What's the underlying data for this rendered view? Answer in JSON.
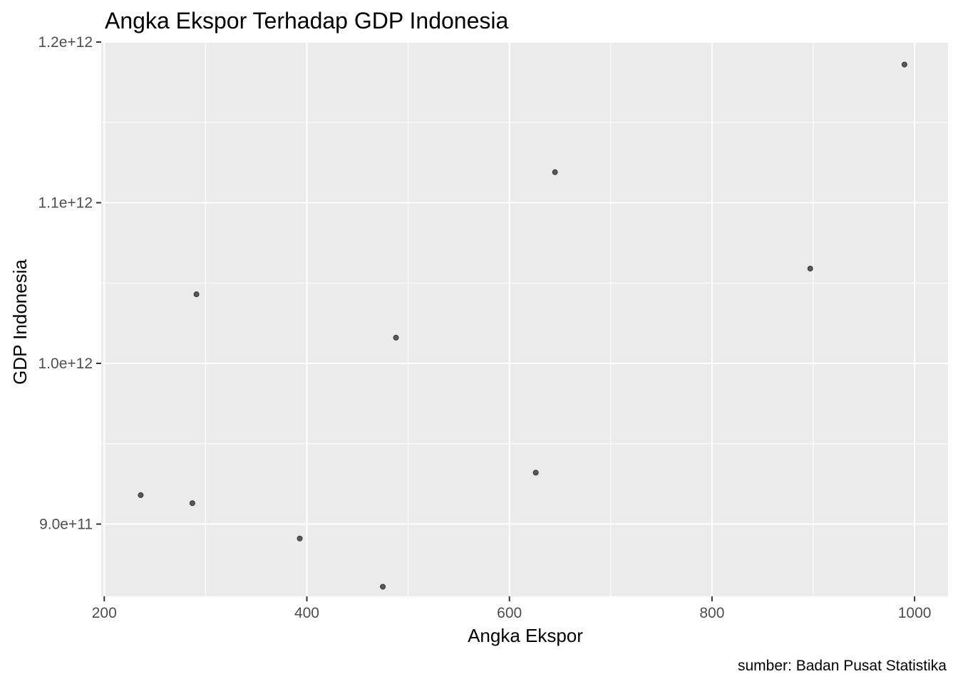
{
  "chart_data": {
    "type": "scatter",
    "title": "Angka Ekspor Terhadap GDP Indonesia",
    "xlabel": "Angka Ekspor",
    "ylabel": "GDP Indonesia",
    "caption": "sumber: Badan Pusat Statistika",
    "xlim": [
      197,
      1033
    ],
    "ylim": [
      855000000000,
      1200000000000
    ],
    "x_ticks": [
      200,
      400,
      600,
      800,
      1000
    ],
    "x_tick_labels": [
      "200",
      "400",
      "600",
      "800",
      "1000"
    ],
    "y_ticks": [
      900000000000,
      1000000000000,
      1100000000000,
      1200000000000
    ],
    "y_tick_labels": [
      "9.0e+11",
      "1.0e+12",
      "1.1e+12",
      "1.2e+12"
    ],
    "grid": true,
    "points": [
      {
        "x": 236,
        "y": 918000000000
      },
      {
        "x": 287,
        "y": 913000000000
      },
      {
        "x": 291,
        "y": 1043000000000
      },
      {
        "x": 393,
        "y": 891000000000
      },
      {
        "x": 475,
        "y": 861000000000
      },
      {
        "x": 488,
        "y": 1016000000000
      },
      {
        "x": 626,
        "y": 932000000000
      },
      {
        "x": 645,
        "y": 1119000000000
      },
      {
        "x": 897,
        "y": 1059000000000
      },
      {
        "x": 990,
        "y": 1186000000000
      }
    ]
  },
  "colors": {
    "panel_background": "#ebebeb",
    "grid_major": "#ffffff",
    "point_fill": "#595959",
    "point_stroke": "#333333"
  }
}
